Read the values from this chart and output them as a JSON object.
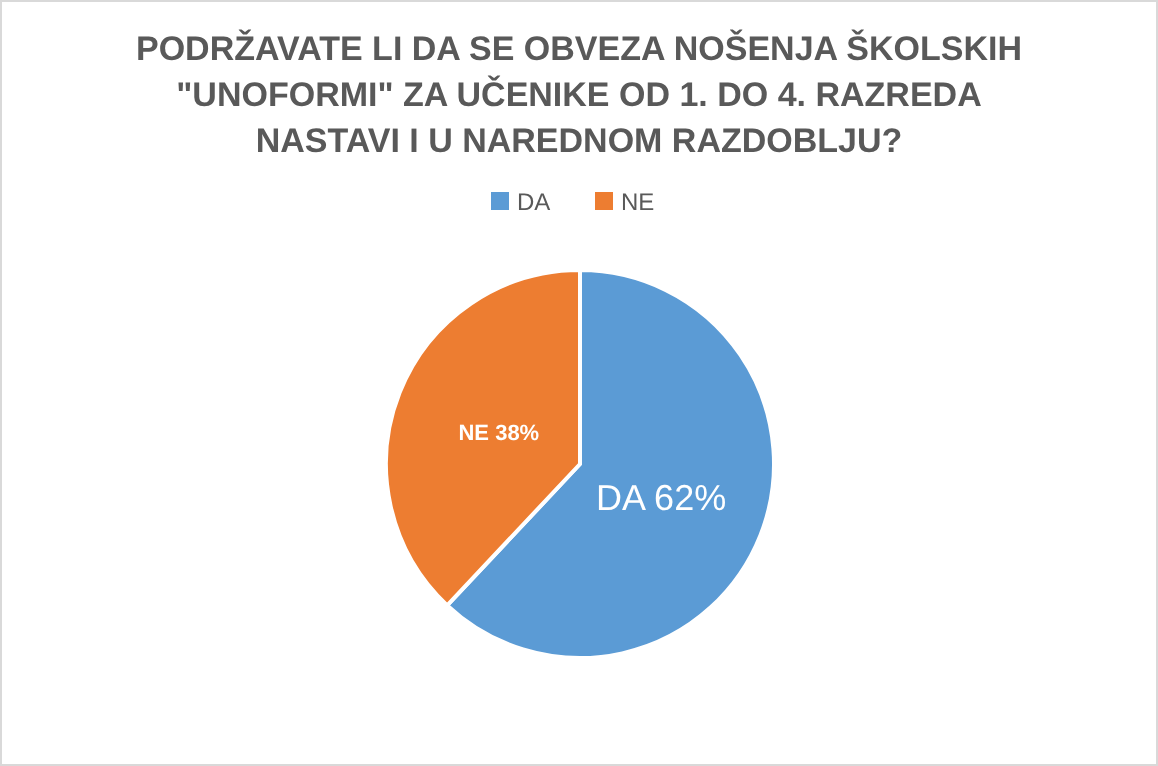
{
  "chart_data": {
    "type": "pie",
    "title": "PODRŽAVATE LI DA SE OBVEZA NOŠENJA ŠKOLSKIH\n\"UNOFORMI\" ZA UČENIKE OD 1. DO 4. RAZREDA\nNASTAVI I U NAREDNOM RAZDOBLJU?",
    "categories": [
      "DA",
      "NE"
    ],
    "values": [
      62,
      38
    ],
    "colors": [
      "#5b9bd5",
      "#ed7d31"
    ],
    "value_labels": [
      "DA 62%",
      "NE 38%"
    ],
    "legend": "top"
  }
}
